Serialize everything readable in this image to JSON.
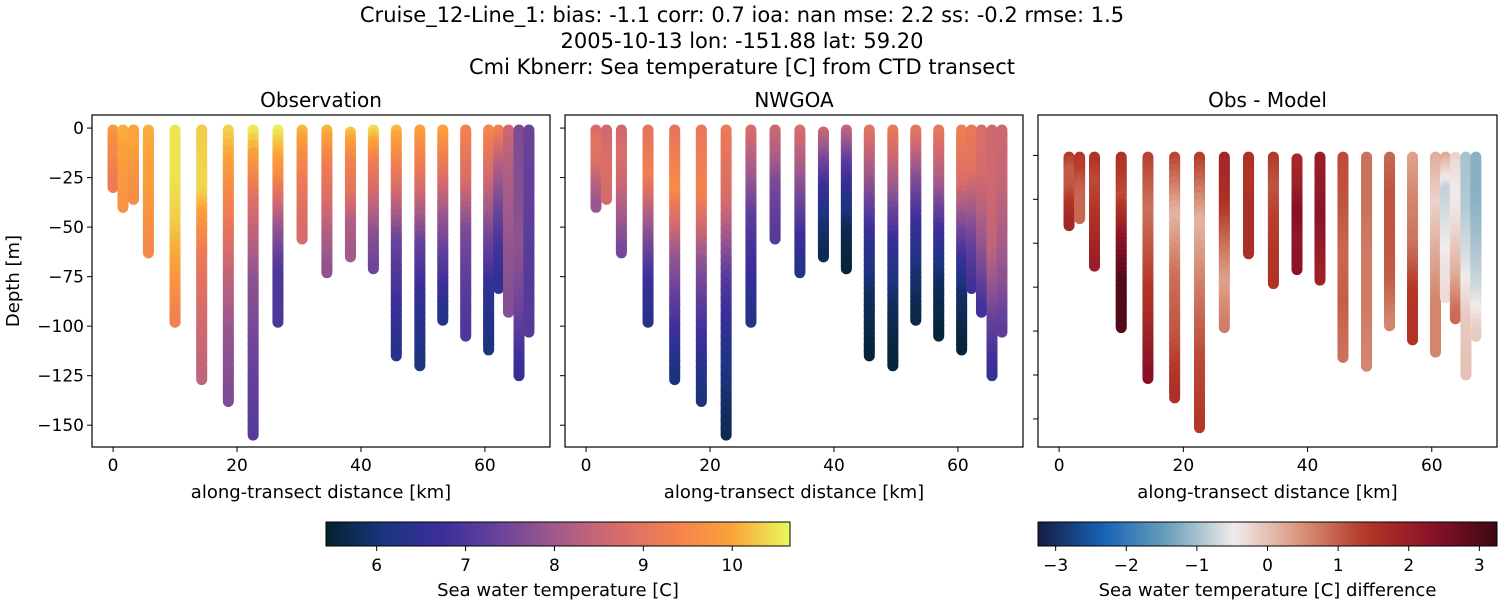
{
  "chart_data": {
    "title_lines": [
      "Cruise_12-Line_1: bias: -1.1  corr: 0.7  ioa: nan  mse: 2.2  ss: -0.2  rmse: 1.5",
      "2005-10-13 lon: -151.88 lat: 59.20",
      "Cmi Kbnerr: Sea temperature [C] from CTD transect"
    ],
    "type": "scatter",
    "panels": [
      {
        "title": "Observation",
        "xlabel": "along-transect distance [km]",
        "ylabel": "Depth [m]",
        "xlim": [
          -3.4,
          70.5
        ],
        "ylim": [
          -161,
          6.6
        ],
        "xticks": [
          0,
          20,
          40,
          60
        ],
        "yticks": [
          0,
          -25,
          -50,
          -75,
          -100,
          -125,
          -150
        ],
        "show_ytick_labels": true,
        "source": "obs",
        "colormap": "thermal"
      },
      {
        "title": "NWGOA",
        "xlabel": "along-transect distance [km]",
        "xlim": [
          -3.4,
          70.5
        ],
        "ylim": [
          -161,
          6.6
        ],
        "xticks": [
          0,
          20,
          40,
          60
        ],
        "yticks": [
          0,
          -25,
          -50,
          -75,
          -100,
          -125,
          -150
        ],
        "show_ytick_labels": false,
        "source": "model",
        "colormap": "thermal"
      },
      {
        "title": "Obs - Model",
        "xlabel": "along-transect distance [km]",
        "xlim": [
          -3.4,
          70.5
        ],
        "ylim": [
          -166,
          23
        ],
        "xticks": [
          0,
          20,
          40,
          60
        ],
        "yticks": [
          0,
          -25,
          -50,
          -75,
          -100,
          -125,
          -150
        ],
        "show_ytick_labels": false,
        "source": "diff",
        "colormap": "balance"
      }
    ],
    "profile_depth_fractions": [
      0,
      0.25,
      0.5,
      0.75,
      1
    ],
    "profiles": [
      {
        "x": 0.0,
        "top": -1,
        "bottom": -30,
        "obs": [
          9.8,
          9.6,
          9.5,
          9.3,
          9.2
        ],
        "model": null
      },
      {
        "x": 1.6,
        "top": -1,
        "bottom": -40,
        "obs": [
          10.1,
          10,
          9.9,
          9.8,
          9.7
        ],
        "model": [
          8.7,
          9,
          8.8,
          8.3,
          7.9
        ]
      },
      {
        "x": 3.3,
        "top": -1,
        "bottom": -36,
        "obs": [
          10,
          10,
          9.8,
          9.7,
          9.6
        ],
        "model": [
          8.6,
          8.7,
          8.8,
          8.8,
          8.7
        ]
      },
      {
        "x": 5.7,
        "top": -1,
        "bottom": -63,
        "obs": [
          10.1,
          10,
          9.9,
          9.7,
          9.5
        ],
        "model": [
          8.6,
          8.8,
          8.5,
          8,
          7.5
        ]
      },
      {
        "x": 10.0,
        "top": -1,
        "bottom": -98,
        "obs": [
          10.5,
          10.5,
          10.3,
          9.9,
          9.3
        ],
        "model": [
          9,
          9.3,
          8,
          6.9,
          6.3
        ]
      },
      {
        "x": 14.3,
        "top": -1,
        "bottom": -127,
        "obs": [
          10.3,
          10.4,
          9.2,
          8.7,
          8.4
        ],
        "model": [
          9,
          9.6,
          8,
          7,
          6
        ]
      },
      {
        "x": 18.6,
        "top": -1,
        "bottom": -138,
        "obs": [
          10.4,
          9.5,
          8.6,
          7.9,
          7.6
        ],
        "model": [
          9.1,
          9.4,
          7.8,
          6.8,
          6
        ]
      },
      {
        "x": 22.6,
        "top": -1,
        "bottom": -155,
        "obs": [
          10.6,
          8.8,
          7.8,
          7.4,
          7.1
        ],
        "model": [
          9.2,
          8.7,
          7.1,
          6.2,
          5.7
        ]
      },
      {
        "x": 26.6,
        "top": -1,
        "bottom": -98,
        "obs": [
          10.6,
          9.6,
          8,
          7,
          7
        ],
        "model": [
          8.8,
          8,
          7.1,
          6.7,
          6.3
        ]
      },
      {
        "x": 30.5,
        "top": -1,
        "bottom": -56,
        "obs": [
          10.2,
          9.6,
          9.2,
          8.9,
          8.7
        ],
        "model": [
          8.6,
          8.2,
          7.6,
          7.3,
          7.1
        ]
      },
      {
        "x": 34.5,
        "top": -1,
        "bottom": -73,
        "obs": [
          10.2,
          9.3,
          8.8,
          8.2,
          7.8
        ],
        "model": [
          8.8,
          8.2,
          7.5,
          6.8,
          6.3
        ]
      },
      {
        "x": 38.3,
        "top": -2,
        "bottom": -65,
        "obs": [
          10.3,
          9.4,
          9,
          8.2,
          8
        ],
        "model": [
          8.6,
          7.5,
          6.6,
          6,
          5.7
        ]
      },
      {
        "x": 42.0,
        "top": -1,
        "bottom": -71,
        "obs": [
          10.5,
          9.3,
          8.6,
          7.8,
          7.4
        ],
        "model": [
          8.5,
          7.2,
          6.3,
          5.7,
          5.5
        ]
      },
      {
        "x": 45.7,
        "top": -1,
        "bottom": -115,
        "obs": [
          10.2,
          8.9,
          7.4,
          6.8,
          6.3
        ],
        "model": [
          9,
          7.8,
          6.5,
          5.8,
          5.5
        ]
      },
      {
        "x": 49.5,
        "top": -1,
        "bottom": -120,
        "obs": [
          10,
          8.8,
          7.3,
          6.5,
          6.1
        ],
        "model": [
          9.2,
          8,
          6.6,
          5.8,
          5.5
        ]
      },
      {
        "x": 53.2,
        "top": -1,
        "bottom": -97,
        "obs": [
          10,
          8.9,
          7.8,
          7,
          6.2
        ],
        "model": [
          9.1,
          7.8,
          6.7,
          6,
          5.6
        ]
      },
      {
        "x": 56.9,
        "top": -1,
        "bottom": -105,
        "obs": [
          9.4,
          8.8,
          7.6,
          7.2,
          7
        ],
        "model": [
          9.1,
          8.2,
          6.8,
          5.8,
          5.5
        ]
      },
      {
        "x": 60.6,
        "top": -1,
        "bottom": -112,
        "obs": [
          9.5,
          8.6,
          7.5,
          6.5,
          6.1
        ],
        "model": [
          9.3,
          8.8,
          7.3,
          5.9,
          5.5
        ]
      },
      {
        "x": 62.2,
        "top": -1,
        "bottom": -81,
        "obs": [
          9.4,
          8.2,
          7.5,
          6.9,
          6.5
        ],
        "model": [
          9.1,
          9,
          8.1,
          7.3,
          6.8
        ]
      },
      {
        "x": 63.8,
        "top": -1,
        "bottom": -93,
        "obs": [
          8.6,
          8.2,
          8,
          7.8,
          7.7
        ],
        "model": [
          8.8,
          8.7,
          8.2,
          7.6,
          6.8
        ]
      },
      {
        "x": 65.5,
        "top": -1,
        "bottom": -125,
        "obs": [
          7.6,
          7.7,
          7.8,
          7.4,
          6.6
        ],
        "model": [
          8.6,
          8.6,
          8.4,
          7.5,
          6.6
        ]
      },
      {
        "x": 67.1,
        "top": -1,
        "bottom": -103,
        "obs": [
          7.4,
          7.3,
          7.2,
          7.1,
          7.1
        ],
        "model": [
          8.6,
          8.5,
          8.2,
          7.8,
          7.2
        ]
      }
    ],
    "colorbars": [
      {
        "label": "Sea water temperature [C]",
        "range": [
          5.43,
          10.65
        ],
        "ticks": [
          6,
          7,
          8,
          9,
          10
        ],
        "colormap": "thermal"
      },
      {
        "label": "Sea water temperature [C] difference",
        "range": [
          -3.25,
          3.25
        ],
        "ticks": [
          -3,
          -2,
          -1,
          0,
          1,
          2,
          3
        ],
        "tick_labels": [
          "−3",
          "−2",
          "−1",
          "0",
          "1",
          "2",
          "3"
        ],
        "colormap": "balance"
      }
    ],
    "colormaps": {
      "thermal": [
        "#03232f",
        "#1c3480",
        "#3b2f9a",
        "#6a439a",
        "#a35b8a",
        "#d56b6c",
        "#f3804f",
        "#fba23a",
        "#e8fa5b"
      ],
      "balance": [
        "#181c43",
        "#1563b8",
        "#6ea1b9",
        "#f1ecec",
        "#d9937a",
        "#b33727",
        "#8b1128",
        "#3c0912"
      ]
    }
  }
}
